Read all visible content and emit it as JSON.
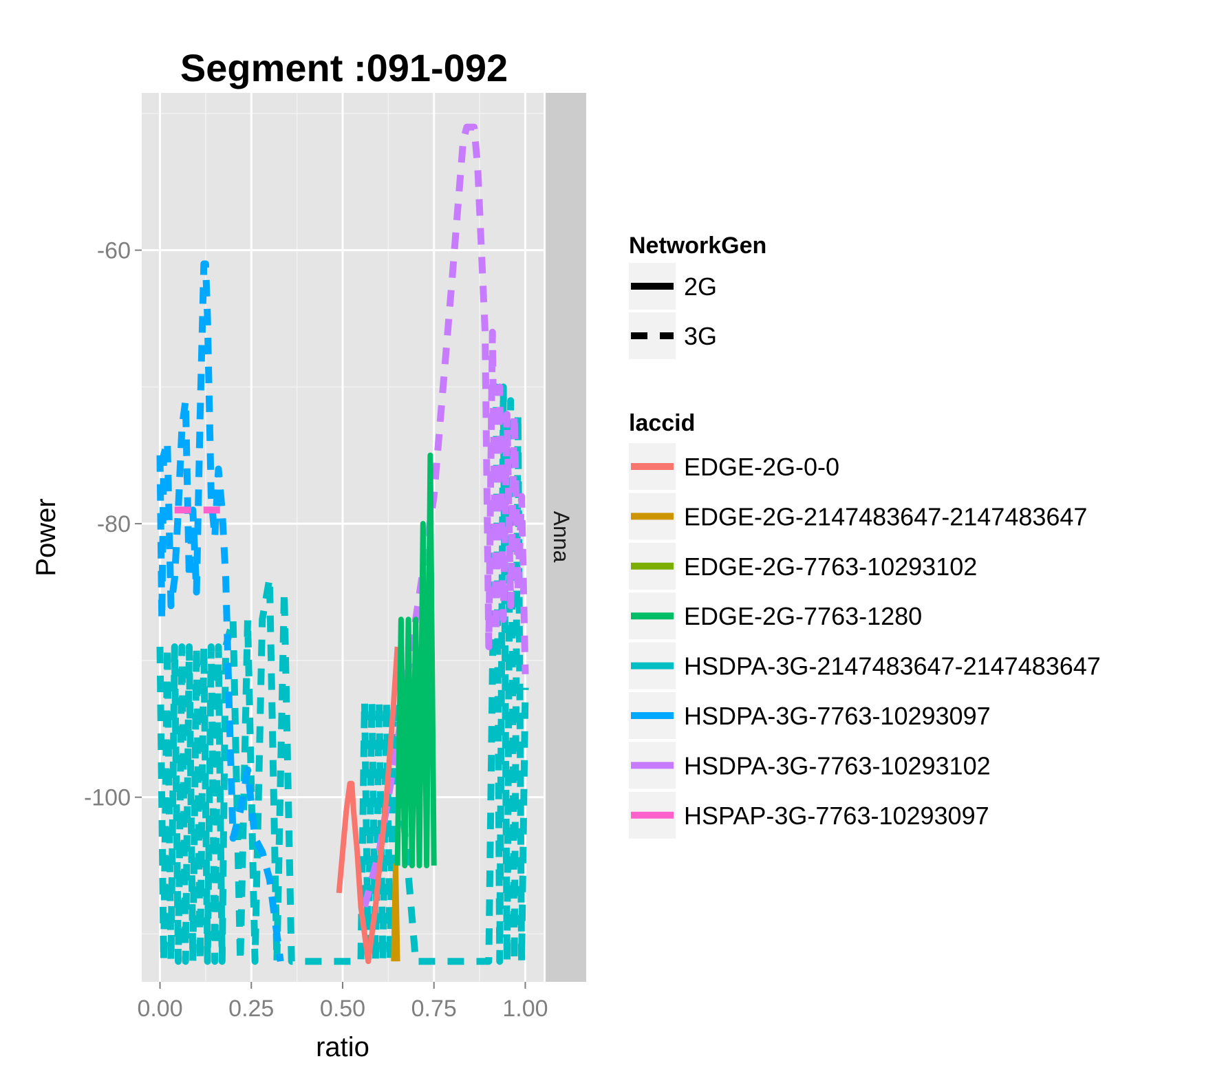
{
  "chart_data": {
    "type": "line",
    "title": "Segment :091-092",
    "xlabel": "ratio",
    "ylabel": "Power",
    "facet_label": "Anna",
    "xlim": [
      -0.05,
      1.05
    ],
    "ylim": [
      -113.5,
      -48.5
    ],
    "x_ticks": [
      0.0,
      0.25,
      0.5,
      0.75,
      1.0
    ],
    "x_tick_labels": [
      "0.00",
      "0.25",
      "0.50",
      "0.75",
      "1.00"
    ],
    "y_ticks": [
      -60,
      -80,
      -100
    ],
    "y_tick_labels": [
      "-60",
      "-80",
      "-100"
    ],
    "grid": true,
    "legend_position": "right",
    "linetype_legend": {
      "title": "NetworkGen",
      "entries": [
        {
          "label": "2G",
          "linetype": "solid"
        },
        {
          "label": "3G",
          "linetype": "dashed"
        }
      ]
    },
    "color_legend": {
      "title": "laccid",
      "entries": [
        {
          "label": "EDGE-2G-0-0",
          "color": "#F8766D"
        },
        {
          "label": "EDGE-2G-2147483647-2147483647",
          "color": "#CD9600"
        },
        {
          "label": "EDGE-2G-7763-10293102",
          "color": "#7CAE00"
        },
        {
          "label": "EDGE-2G-7763-1280",
          "color": "#00BE67"
        },
        {
          "label": "HSDPA-3G-2147483647-2147483647",
          "color": "#00BFC4"
        },
        {
          "label": "HSDPA-3G-7763-10293097",
          "color": "#00A9FF"
        },
        {
          "label": "HSDPA-3G-7763-10293102",
          "color": "#C77CFF"
        },
        {
          "label": "HSPAP-3G-7763-10293097",
          "color": "#FF61CC"
        }
      ]
    },
    "series": [
      {
        "name": "HSDPA-3G-2147483647-2147483647",
        "linetype": "dashed",
        "color": "#00BFC4",
        "x": [
          0.0,
          0.01,
          0.02,
          0.03,
          0.04,
          0.05,
          0.06,
          0.07,
          0.08,
          0.09,
          0.1,
          0.11,
          0.12,
          0.13,
          0.14,
          0.15,
          0.16,
          0.17,
          0.18,
          0.2,
          0.22,
          0.24,
          0.26,
          0.28,
          0.3,
          0.32,
          0.34,
          0.36,
          0.4,
          0.45,
          0.5,
          0.55,
          0.56,
          0.57,
          0.58,
          0.59,
          0.6,
          0.61,
          0.62,
          0.63,
          0.64,
          0.7,
          0.75,
          0.8,
          0.85,
          0.9,
          0.92,
          0.93,
          0.94,
          0.95,
          0.96,
          0.97,
          0.98,
          0.99,
          1.0
        ],
        "y": [
          -89,
          -112,
          -89,
          -112,
          -89,
          -112,
          -89,
          -112,
          -89,
          -112,
          -89,
          -112,
          -89,
          -112,
          -89,
          -112,
          -89,
          -112,
          -89,
          -87,
          -112,
          -87,
          -112,
          -87,
          -84,
          -112,
          -85,
          -112,
          -112,
          -112,
          -112,
          -112,
          -93,
          -112,
          -93,
          -112,
          -93,
          -112,
          -93,
          -112,
          -93,
          -112,
          -112,
          -112,
          -112,
          -112,
          -70,
          -112,
          -70,
          -112,
          -71,
          -112,
          -72,
          -112,
          -92
        ]
      },
      {
        "name": "HSDPA-3G-7763-10293097",
        "linetype": "dashed",
        "color": "#00A9FF",
        "x": [
          0.0,
          0.005,
          0.01,
          0.02,
          0.03,
          0.04,
          0.05,
          0.06,
          0.07,
          0.08,
          0.09,
          0.1,
          0.11,
          0.12,
          0.125,
          0.13,
          0.14,
          0.15,
          0.16,
          0.17,
          0.18,
          0.19,
          0.2,
          0.22,
          0.24,
          0.26,
          0.28,
          0.3,
          0.33
        ],
        "y": [
          -75,
          -87,
          -75,
          -74,
          -86,
          -84,
          -79,
          -73,
          -71,
          -84,
          -79,
          -85,
          -72,
          -61,
          -61,
          -65,
          -78,
          -81,
          -76,
          -79,
          -84,
          -94,
          -103,
          -101,
          -98,
          -103,
          -104,
          -106,
          -112
        ]
      },
      {
        "name": "HSDPA-3G-7763-10293102",
        "linetype": "dashed",
        "color": "#C77CFF",
        "x": [
          0.56,
          0.6,
          0.65,
          0.7,
          0.75,
          0.8,
          0.83,
          0.84,
          0.85,
          0.86,
          0.87,
          0.88,
          0.89,
          0.9,
          0.91,
          0.92,
          0.93,
          0.94,
          0.95,
          0.96,
          0.97,
          0.98,
          0.99,
          1.0
        ],
        "y": [
          -108,
          -104,
          -96,
          -87,
          -78,
          -62,
          -52,
          -51,
          -51,
          -51,
          -54,
          -60,
          -66,
          -89,
          -66,
          -88,
          -70,
          -87,
          -72,
          -86,
          -72,
          -85,
          -78,
          -91
        ]
      },
      {
        "name": "HSPAP-3G-7763-10293097",
        "linetype": "dashed",
        "color": "#FF61CC",
        "x": [
          0.04,
          0.08,
          0.13,
          0.18
        ],
        "y": [
          -79,
          -79,
          -79,
          -79
        ]
      },
      {
        "name": "EDGE-2G-0-0",
        "linetype": "solid",
        "color": "#F8766D",
        "x": [
          0.49,
          0.5,
          0.51,
          0.52,
          0.525,
          0.53,
          0.54,
          0.55,
          0.56,
          0.57,
          0.59,
          0.62,
          0.64,
          0.65
        ],
        "y": [
          -107,
          -104,
          -101,
          -99,
          -99,
          -101,
          -104,
          -108,
          -110,
          -112,
          -108,
          -100,
          -93,
          -89
        ]
      },
      {
        "name": "EDGE-2G-2147483647-2147483647",
        "linetype": "solid",
        "color": "#CD9600",
        "x": [
          0.64,
          0.645,
          0.65
        ],
        "y": [
          -112,
          -105,
          -112
        ]
      },
      {
        "name": "EDGE-2G-7763-1280",
        "linetype": "solid",
        "color": "#00BE67",
        "x": [
          0.65,
          0.66,
          0.67,
          0.68,
          0.69,
          0.7,
          0.71,
          0.72,
          0.73,
          0.74,
          0.75
        ],
        "y": [
          -105,
          -87,
          -105,
          -87,
          -105,
          -87,
          -105,
          -80,
          -105,
          -75,
          -105
        ]
      }
    ]
  }
}
